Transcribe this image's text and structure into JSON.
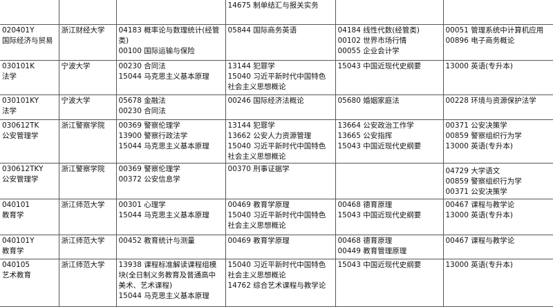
{
  "table": {
    "rows": [
      [
        [],
        [],
        [],
        [
          "14675 制单结汇与报关实务"
        ],
        [],
        []
      ],
      [
        [
          "020401Y",
          "国际经济与贸易"
        ],
        [
          "浙江财经大学"
        ],
        [
          "04183 概率论与数理统计(经管类)",
          "00100 国际运输与保险"
        ],
        [
          "05844 国际商务英语"
        ],
        [
          "04184 线性代数(经管类)",
          "00102 世界市场行情",
          "00055 企业会计学"
        ],
        [
          "00051 管理系统中计算机应用",
          "00896 电子商务概论"
        ]
      ],
      [
        [
          "030101K",
          "法学"
        ],
        [
          "宁波大学"
        ],
        [
          "00230 合同法",
          "15044 马克思主义基本原理"
        ],
        [
          "13144 犯罪学",
          "15040 习近平新时代中国特色社会主义思想概论"
        ],
        [
          "15043 中国近现代史纲要"
        ],
        [
          "13000 英语(专升本)"
        ]
      ],
      [
        [
          "030101KY",
          "法学"
        ],
        [
          "宁波大学"
        ],
        [
          "05678 金融法",
          "00230 合同法"
        ],
        [
          "00246 国际经济法概论"
        ],
        [
          "05680 婚姻家庭法"
        ],
        [
          "00228 环境与资源保护法学"
        ]
      ],
      [
        [
          "030612TK",
          "公安管理学"
        ],
        [
          "浙江警察学院"
        ],
        [
          "00369 警察伦理学",
          "13900 警察行政法学",
          "15044 马克思主义基本原理"
        ],
        [
          "13144 犯罪学",
          "13662 公安人力资源管理",
          "15040 习近平新时代中国特色社会主义思想概论"
        ],
        [
          "13664 公安政治工作学",
          "13665 公安指挥",
          "15043 中国近现代史纲要"
        ],
        [
          "00371 公安决策学",
          "00859 警察组织行为学",
          "13000 英语(专升本)"
        ]
      ],
      [
        [
          "030612TKY",
          "公安管理学"
        ],
        [
          "浙江警察学院"
        ],
        [
          "00369 警察伦理学",
          "00372 公安信息学"
        ],
        [
          "00370 刑事证据学"
        ],
        [],
        [
          "04729 大学语文",
          "00859 警察组织行为学",
          "00371 公安决策学"
        ]
      ],
      [
        [
          "040101",
          "教育学"
        ],
        [
          "浙江师范大学"
        ],
        [
          "00301 心理学",
          "15044 马克思主义基本原理"
        ],
        [
          "00469 教育学原理",
          "15040 习近平新时代中国特色社会主义思想概论"
        ],
        [
          "00468 德育原理",
          "15043 中国近现代史纲要"
        ],
        [
          "00467 课程与教学论",
          "13000 英语(专升本)"
        ]
      ],
      [
        [
          "040101Y",
          "教育学"
        ],
        [
          "浙江师范大学"
        ],
        [
          "00452 教育统计与测量"
        ],
        [
          "00469 教育学原理"
        ],
        [
          "00468 德育原理",
          "00449 教育管理原理"
        ],
        [
          "00467 课程与教学论"
        ]
      ],
      [
        [
          "040105",
          "艺术教育"
        ],
        [
          "浙江师范大学"
        ],
        [
          "13938 课程标准解读课程组模块(全日制义务教育及普通高中美术、艺术课程)",
          "15044 马克思主义基本原理"
        ],
        [
          "15040 习近平新时代中国特色社会主义思想概论",
          "14762 综合艺术课程与教学论"
        ],
        [
          "15043 中国近现代史纲要"
        ],
        [
          "13000 英语(专升本)"
        ]
      ]
    ]
  }
}
